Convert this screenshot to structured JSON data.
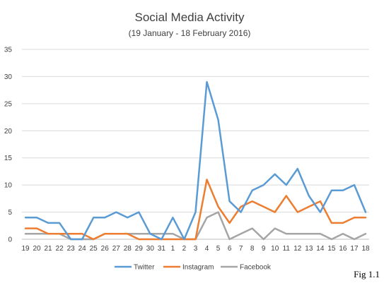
{
  "figure_label": "Fig 1.1",
  "chart_data": {
    "type": "line",
    "title": "Social Media Activity",
    "subtitle": "(19 January - 18 February 2016)",
    "xlabel": "",
    "ylabel": "",
    "ylim": [
      0,
      35
    ],
    "yticks": [
      0,
      5,
      10,
      15,
      20,
      25,
      30,
      35
    ],
    "grid": true,
    "legend": "bottom",
    "categories": [
      "19",
      "20",
      "21",
      "22",
      "23",
      "24",
      "25",
      "26",
      "27",
      "28",
      "29",
      "30",
      "31",
      "1",
      "2",
      "3",
      "4",
      "5",
      "6",
      "7",
      "8",
      "9",
      "10",
      "11",
      "12",
      "13",
      "14",
      "15",
      "16",
      "17",
      "18"
    ],
    "series": [
      {
        "name": "Twitter",
        "color": "#5b9bd5",
        "values": [
          4,
          4,
          3,
          3,
          0,
          0,
          4,
          4,
          5,
          4,
          5,
          1,
          0,
          4,
          0,
          5,
          29,
          22,
          7,
          5,
          9,
          10,
          12,
          10,
          13,
          8,
          5,
          9,
          9,
          10,
          5
        ]
      },
      {
        "name": "Instagram",
        "color": "#ed7d31",
        "values": [
          2,
          2,
          1,
          1,
          1,
          1,
          0,
          1,
          1,
          1,
          0,
          0,
          0,
          0,
          0,
          0,
          11,
          6,
          3,
          6,
          7,
          6,
          5,
          8,
          5,
          6,
          7,
          3,
          3,
          4,
          4
        ]
      },
      {
        "name": "Facebook",
        "color": "#a5a5a5",
        "values": [
          1,
          1,
          1,
          1,
          0,
          0,
          0,
          1,
          1,
          1,
          1,
          1,
          1,
          1,
          0,
          0,
          4,
          5,
          0,
          1,
          2,
          0,
          2,
          1,
          1,
          1,
          1,
          0,
          1,
          0,
          1
        ]
      }
    ]
  }
}
